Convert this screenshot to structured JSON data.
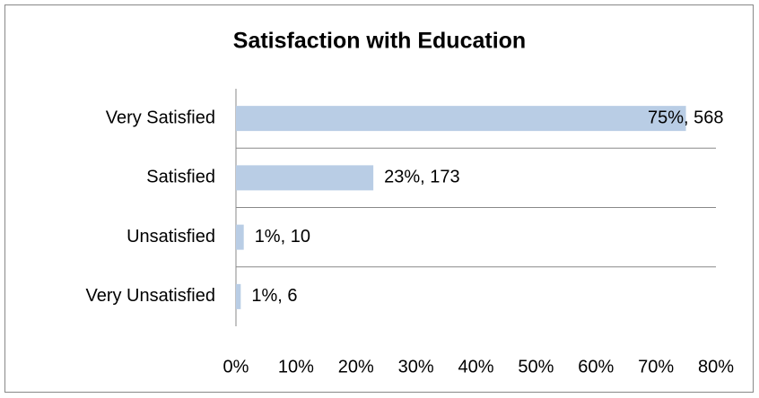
{
  "chart_data": {
    "type": "bar",
    "orientation": "horizontal",
    "title": "Satisfaction with Education",
    "categories": [
      "Very Satisfied",
      "Satisfied",
      "Unsatisfied",
      "Very Unsatisfied"
    ],
    "values": [
      75,
      22.9,
      1.3,
      0.8
    ],
    "value_labels": [
      "75%, 568",
      "23%, 173",
      "1%, 10",
      "1%, 6"
    ],
    "color": "#b9cde5",
    "xlim": [
      0,
      80
    ],
    "xticks": [
      {
        "value": 0,
        "label": "0%"
      },
      {
        "value": 10,
        "label": "10%"
      },
      {
        "value": 20,
        "label": "20%"
      },
      {
        "value": 30,
        "label": "30%"
      },
      {
        "value": 40,
        "label": "40%"
      },
      {
        "value": 50,
        "label": "50%"
      },
      {
        "value": 60,
        "label": "60%"
      },
      {
        "value": 70,
        "label": "70%"
      },
      {
        "value": 80,
        "label": "80%"
      }
    ]
  }
}
